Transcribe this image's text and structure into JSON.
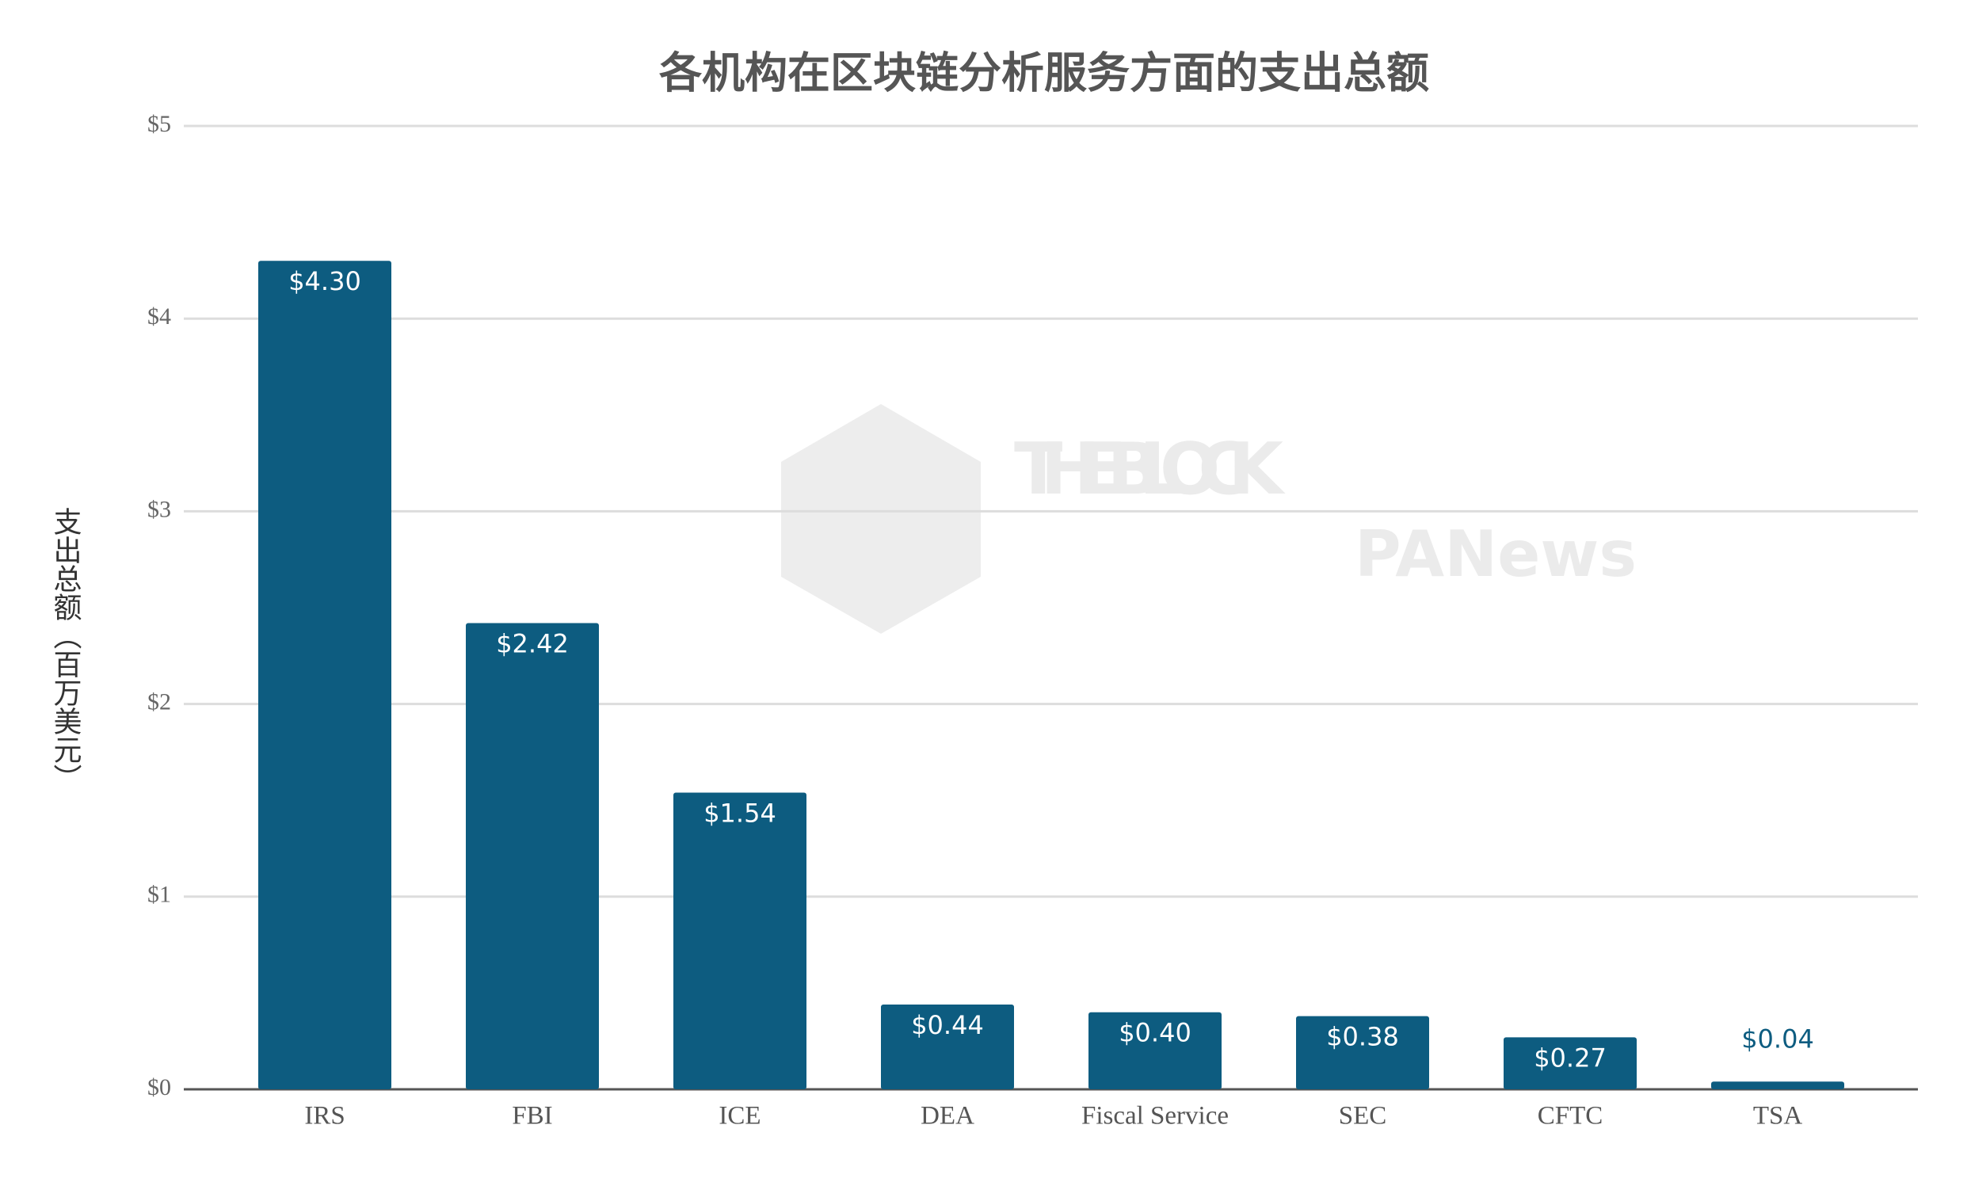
{
  "chart_data": {
    "type": "bar",
    "title": "各机构在区块链分析服务方面的支出总额",
    "y_label": "支出总额（百万美元）",
    "watermarks": [
      "THE BLOCK",
      "PANews"
    ],
    "categories": [
      "IRS",
      "FBI",
      "ICE",
      "DEA",
      "Fiscal Service",
      "SEC",
      "CFTC",
      "TSA"
    ],
    "values": [
      4.3,
      2.42,
      1.54,
      0.44,
      0.4,
      0.38,
      0.27,
      0.04
    ],
    "value_labels": [
      "$4.30",
      "$2.42",
      "$1.54",
      "$0.44",
      "$0.40",
      "$0.38",
      "$0.27",
      "$0.04"
    ],
    "color": "#0d5c80",
    "ylim": [
      0,
      5
    ],
    "yticks": [
      {
        "value": 0,
        "label": "$0"
      },
      {
        "value": 1,
        "label": "$1"
      },
      {
        "value": 2,
        "label": "$2"
      },
      {
        "value": 3,
        "label": "$3"
      },
      {
        "value": 4,
        "label": "$4"
      },
      {
        "value": 5,
        "label": "$5"
      }
    ],
    "grid": true
  }
}
